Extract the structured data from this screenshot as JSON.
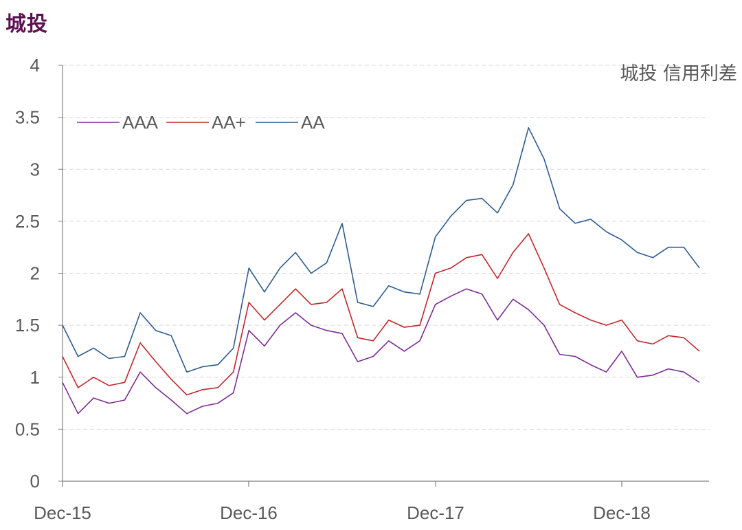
{
  "page_title": "城投",
  "colors": {
    "title": "#5b1150",
    "axis": "#7f7f7f",
    "grid": "#d9d9d9",
    "text": "#595959",
    "AAA": "#7b2c92",
    "AA+": "#c0272d",
    "AA": "#2c5a8e"
  },
  "chart_data": {
    "type": "line",
    "title": "城投 信用利差",
    "xlabel": "",
    "ylabel": "",
    "ylim": [
      0,
      4
    ],
    "yticks": [
      "0",
      "0.5",
      "1",
      "1.5",
      "2",
      "2.5",
      "3",
      "3.5",
      "4"
    ],
    "xticks": [
      "Dec-15",
      "Dec-16",
      "Dec-17",
      "Dec-18"
    ],
    "grid": "horizontal dashed",
    "legend_position": "top-left",
    "x": [
      "Dec-15",
      "Jan-16",
      "Feb-16",
      "Mar-16",
      "Apr-16",
      "May-16",
      "Jun-16",
      "Jul-16",
      "Aug-16",
      "Sep-16",
      "Oct-16",
      "Nov-16",
      "Dec-16",
      "Jan-17",
      "Feb-17",
      "Mar-17",
      "Apr-17",
      "May-17",
      "Jun-17",
      "Jul-17",
      "Aug-17",
      "Sep-17",
      "Oct-17",
      "Nov-17",
      "Dec-17",
      "Jan-18",
      "Feb-18",
      "Mar-18",
      "Apr-18",
      "May-18",
      "Jun-18",
      "Jul-18",
      "Aug-18",
      "Sep-18",
      "Oct-18",
      "Nov-18",
      "Dec-18",
      "Jan-19",
      "Feb-19",
      "Mar-19",
      "Apr-19",
      "May-19"
    ],
    "series": [
      {
        "name": "AAA",
        "values": [
          0.95,
          0.65,
          0.8,
          0.75,
          0.78,
          1.05,
          0.9,
          0.78,
          0.65,
          0.72,
          0.75,
          0.85,
          1.45,
          1.3,
          1.5,
          1.62,
          1.5,
          1.45,
          1.42,
          1.15,
          1.2,
          1.35,
          1.25,
          1.35,
          1.7,
          1.78,
          1.85,
          1.8,
          1.55,
          1.75,
          1.65,
          1.5,
          1.22,
          1.2,
          1.12,
          1.05,
          1.25,
          1.0,
          1.02,
          1.08,
          1.05,
          0.95
        ]
      },
      {
        "name": "AA+",
        "values": [
          1.2,
          0.9,
          1.0,
          0.92,
          0.95,
          1.33,
          1.15,
          0.98,
          0.83,
          0.88,
          0.9,
          1.05,
          1.72,
          1.55,
          1.7,
          1.85,
          1.7,
          1.72,
          1.85,
          1.38,
          1.35,
          1.55,
          1.48,
          1.5,
          2.0,
          2.05,
          2.15,
          2.18,
          1.95,
          2.2,
          2.38,
          2.05,
          1.7,
          1.62,
          1.55,
          1.5,
          1.55,
          1.35,
          1.32,
          1.4,
          1.38,
          1.25
        ]
      },
      {
        "name": "AA",
        "values": [
          1.5,
          1.2,
          1.28,
          1.18,
          1.2,
          1.62,
          1.45,
          1.4,
          1.05,
          1.1,
          1.12,
          1.28,
          2.05,
          1.82,
          2.05,
          2.2,
          2.0,
          2.1,
          2.48,
          1.72,
          1.68,
          1.88,
          1.82,
          1.8,
          2.35,
          2.55,
          2.7,
          2.72,
          2.58,
          2.85,
          3.4,
          3.1,
          2.62,
          2.48,
          2.52,
          2.4,
          2.32,
          2.2,
          2.15,
          2.25,
          2.25,
          2.05
        ]
      }
    ]
  }
}
